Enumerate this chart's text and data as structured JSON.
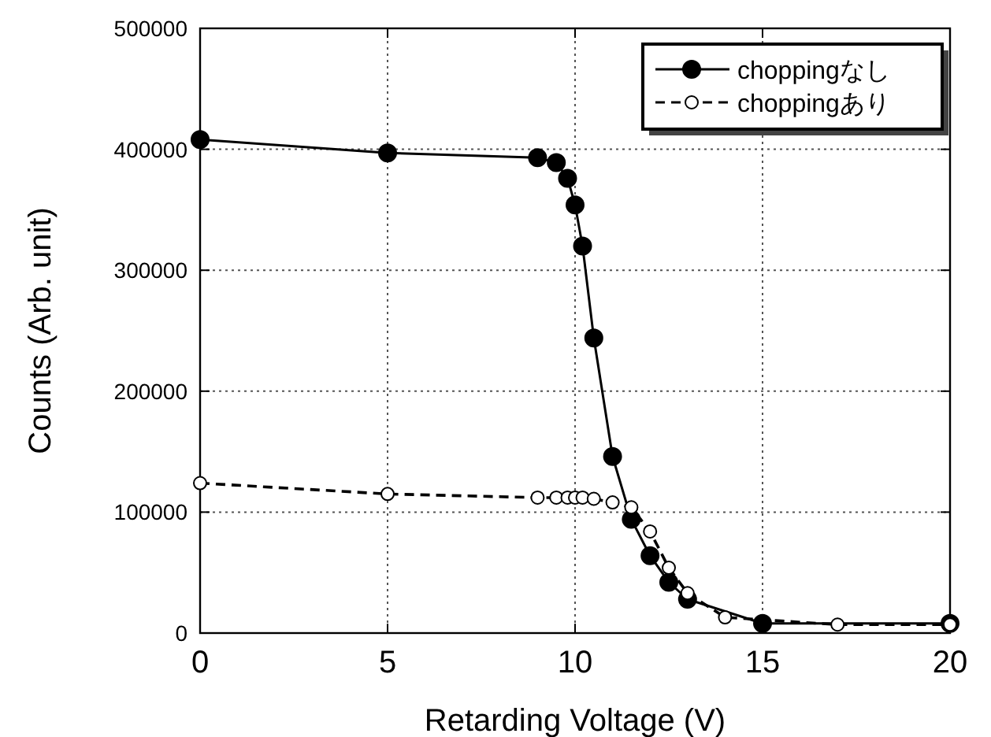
{
  "chart_data": {
    "type": "line",
    "xlabel": "Retarding Voltage (V)",
    "ylabel": "Counts (Arb. unit)",
    "xlim": [
      0,
      20
    ],
    "ylim": [
      0,
      500000
    ],
    "xticks": [
      0,
      5,
      10,
      15,
      20
    ],
    "yticks": [
      0,
      100000,
      200000,
      300000,
      400000,
      500000
    ],
    "grid": true,
    "legend": "top right",
    "marker": "circle",
    "series": [
      {
        "name": "choppingなし",
        "color": "#000000",
        "line_style": "solid",
        "x": [
          0,
          5,
          9,
          9.5,
          9.8,
          10,
          10.2,
          10.5,
          11,
          11.5,
          12,
          12.5,
          13,
          15,
          20
        ],
        "values": [
          408000,
          397000,
          393000,
          389000,
          376000,
          354000,
          320000,
          244000,
          146000,
          94000,
          64000,
          42000,
          28000,
          8000,
          8000
        ]
      },
      {
        "name": "choppingあり",
        "color": "#000000",
        "line_style": "dashed",
        "x": [
          0,
          5,
          9,
          9.5,
          9.8,
          10,
          10.2,
          10.5,
          11,
          11.5,
          12,
          12.5,
          13,
          14,
          17,
          20
        ],
        "values": [
          124000,
          115000,
          112000,
          112000,
          112000,
          112000,
          112000,
          111000,
          108000,
          104000,
          84000,
          54000,
          33000,
          13000,
          7000,
          7000
        ]
      }
    ]
  }
}
